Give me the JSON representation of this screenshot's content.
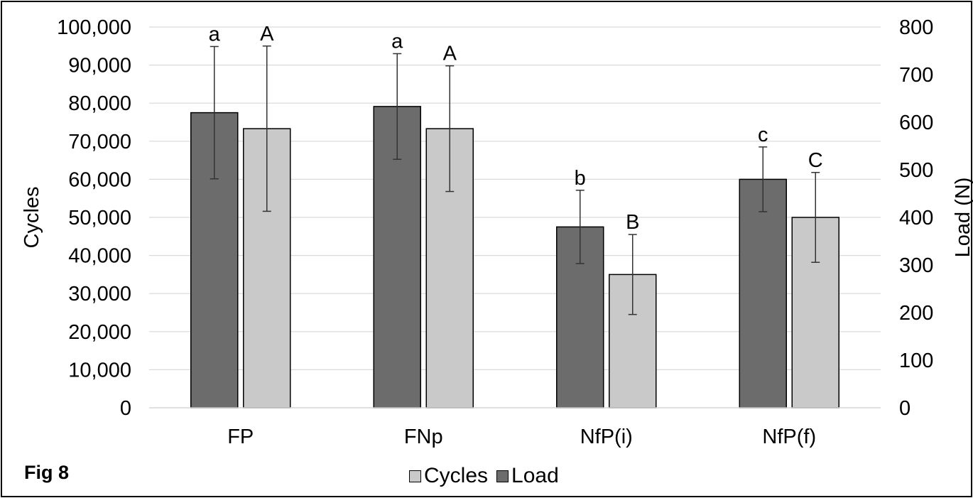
{
  "figure_label": "Fig 8",
  "chart_data": {
    "type": "bar",
    "categories": [
      "FP",
      "FNp",
      "NfP(i)",
      "NfP(f)"
    ],
    "series": [
      {
        "name": "Load",
        "axis": "right",
        "color": "#6c6c6c",
        "values": [
          620,
          633,
          380,
          480
        ],
        "error": [
          139,
          111,
          77,
          68
        ],
        "letters": [
          "a",
          "a",
          "b",
          "c"
        ]
      },
      {
        "name": "Cycles",
        "axis": "left",
        "color": "#c9c9c9",
        "values": [
          73300,
          73300,
          35000,
          50000
        ],
        "error": [
          21700,
          16500,
          10500,
          11800
        ],
        "letters": [
          "A",
          "A",
          "B",
          "C"
        ]
      }
    ],
    "ylabel_left": "Cycles",
    "ylabel_right": "Load (N)",
    "ylim_left": [
      0,
      100000
    ],
    "ylim_right": [
      0,
      800
    ],
    "yticks_left": [
      "0",
      "10,000",
      "20,000",
      "30,000",
      "40,000",
      "50,000",
      "60,000",
      "70,000",
      "80,000",
      "90,000",
      "100,000"
    ],
    "yticks_right": [
      "0",
      "100",
      "200",
      "300",
      "400",
      "500",
      "600",
      "700",
      "800"
    ],
    "grid": true,
    "legend": [
      "Cycles",
      "Load"
    ],
    "legend_position": "bottom"
  }
}
